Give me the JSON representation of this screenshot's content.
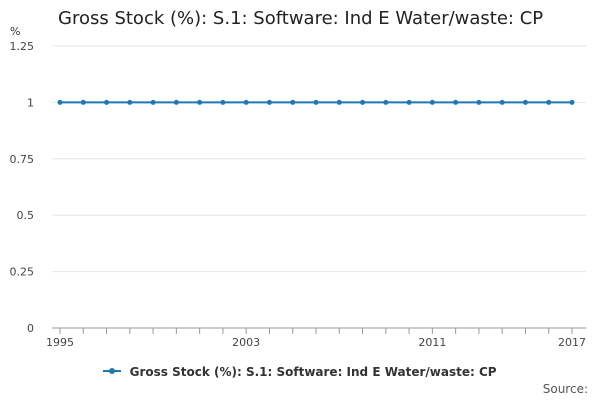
{
  "title": "Gross Stock (%): S.1: Software: Ind E Water/waste: CP",
  "source_label": "Source:",
  "colors": {
    "series": "#1f78b4",
    "grid": "#e6e6e6",
    "axis": "#999999"
  },
  "chart_data": {
    "type": "line",
    "title": "Gross Stock (%): S.1: Software: Ind E Water/waste: CP",
    "ylabel": "%",
    "xlabel": "",
    "ylim": [
      0,
      1.25
    ],
    "yticks": [
      0,
      0.25,
      0.5,
      0.75,
      1,
      1.25
    ],
    "ytick_labels": [
      "0",
      "0.25",
      "0.5",
      "0.75",
      "1",
      "1.25"
    ],
    "xlim": [
      1995,
      2017
    ],
    "xtick_labels": [
      "1995",
      "2003",
      "2011",
      "2017"
    ],
    "grid": true,
    "legend_position": "bottom",
    "x": [
      1995,
      1996,
      1997,
      1998,
      1999,
      2000,
      2001,
      2002,
      2003,
      2004,
      2005,
      2006,
      2007,
      2008,
      2009,
      2010,
      2011,
      2012,
      2013,
      2014,
      2015,
      2016,
      2017
    ],
    "series": [
      {
        "name": "Gross Stock (%): S.1: Software: Ind E Water/waste: CP",
        "values": [
          1,
          1,
          1,
          1,
          1,
          1,
          1,
          1,
          1,
          1,
          1,
          1,
          1,
          1,
          1,
          1,
          1,
          1,
          1,
          1,
          1,
          1,
          1
        ]
      }
    ]
  }
}
